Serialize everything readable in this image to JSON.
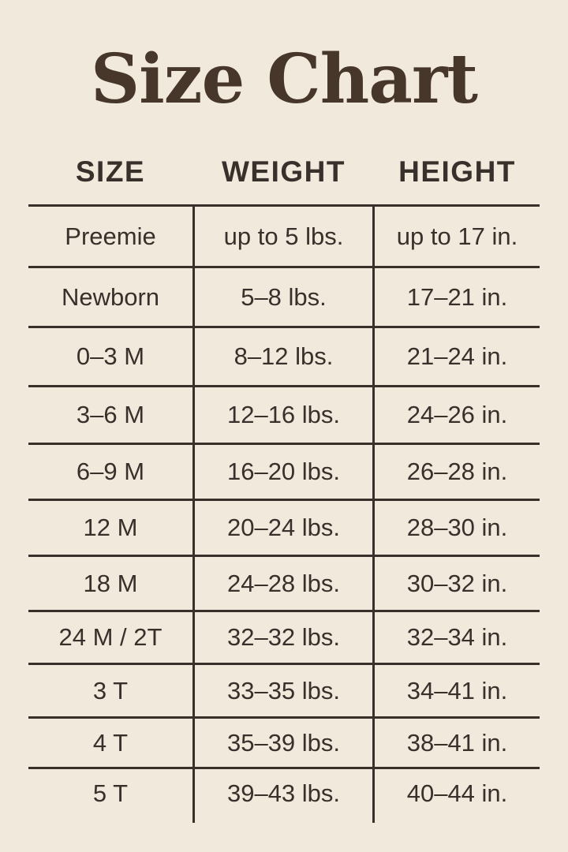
{
  "chart_data": {
    "type": "table",
    "title": "Size Chart",
    "columns": [
      "SIZE",
      "WEIGHT",
      "HEIGHT"
    ],
    "rows": [
      [
        "Preemie",
        "up to 5 lbs.",
        "up to 17 in."
      ],
      [
        "Newborn",
        "5–8 lbs.",
        "17–21 in."
      ],
      [
        "0–3 M",
        "8–12 lbs.",
        "21–24 in."
      ],
      [
        "3–6 M",
        "12–16 lbs.",
        "24–26 in."
      ],
      [
        "6–9 M",
        "16–20 lbs.",
        "26–28 in."
      ],
      [
        "12 M",
        "20–24 lbs.",
        "28–30 in."
      ],
      [
        "18 M",
        "24–28 lbs.",
        "30–32 in."
      ],
      [
        "24 M / 2T",
        "32–32 lbs.",
        "32–34 in."
      ],
      [
        "3 T",
        "33–35 lbs.",
        "34–41 in."
      ],
      [
        "4 T",
        "35–39 lbs.",
        "38–41 in."
      ],
      [
        "5 T",
        "39–43 lbs.",
        "40–44 in."
      ]
    ],
    "layout": {
      "grid": "horizontal rules between all rows, vertical rules around middle column only, no outer border, no bottom rule on last row"
    }
  },
  "colors": {
    "background": "#f2e9dd",
    "title_text": "#46372a",
    "body_text": "#38302b",
    "rule_lines": "#38302b"
  }
}
